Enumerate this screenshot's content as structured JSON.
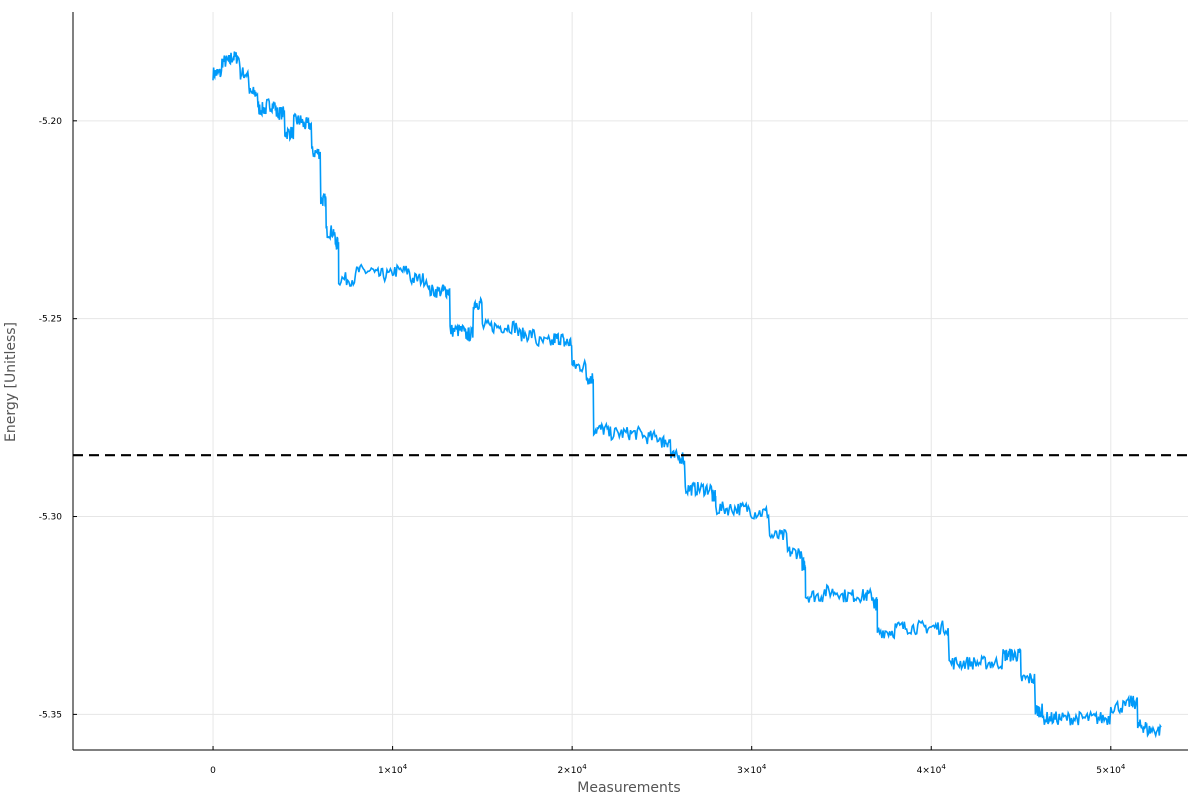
{
  "chart_data": {
    "type": "line",
    "xlabel": "Measurements",
    "ylabel": "Energy [Unitless]",
    "xlim": [
      -7800,
      54300
    ],
    "ylim": [
      -5.359,
      -5.1725
    ],
    "x_ticks": [
      {
        "value": 0,
        "label": "0"
      },
      {
        "value": 10000,
        "label": "1×10",
        "exp": "4"
      },
      {
        "value": 20000,
        "label": "2×10",
        "exp": "4"
      },
      {
        "value": 30000,
        "label": "3×10",
        "exp": "4"
      },
      {
        "value": 40000,
        "label": "4×10",
        "exp": "4"
      },
      {
        "value": 50000,
        "label": "5×10",
        "exp": "4"
      }
    ],
    "y_ticks": [
      {
        "value": -5.2,
        "label": "-5.20"
      },
      {
        "value": -5.25,
        "label": "-5.25"
      },
      {
        "value": -5.3,
        "label": "-5.30"
      },
      {
        "value": -5.35,
        "label": "-5.35"
      }
    ],
    "grid": true,
    "legend": "none",
    "series": [
      {
        "color": "#009af9",
        "x": [
          0,
          500,
          1000,
          1500,
          2000,
          2500,
          3000,
          3500,
          4000,
          4500,
          5000,
          5500,
          6000,
          6300,
          6800,
          7000,
          8000,
          9000,
          10000,
          11000,
          12000,
          12800,
          13200,
          14000,
          14500,
          15000,
          16000,
          17000,
          18000,
          19000,
          19500,
          20000,
          20800,
          21200,
          22000,
          23000,
          24000,
          25000,
          25500,
          26300,
          27000,
          27800,
          28000,
          29000,
          30000,
          31000,
          32000,
          32800,
          33000,
          34000,
          35000,
          36000,
          36800,
          37000,
          38000,
          39000,
          40000,
          41000,
          42000,
          43000,
          44000,
          44500,
          45000,
          45800,
          46200,
          47000,
          48000,
          49000,
          50000,
          51000,
          51500,
          52000,
          52800
        ],
        "y": [
          -5.188,
          -5.185,
          -5.184,
          -5.188,
          -5.193,
          -5.197,
          -5.196,
          -5.198,
          -5.203,
          -5.2,
          -5.201,
          -5.208,
          -5.22,
          -5.228,
          -5.231,
          -5.24,
          -5.238,
          -5.239,
          -5.238,
          -5.24,
          -5.243,
          -5.243,
          -5.253,
          -5.254,
          -5.246,
          -5.252,
          -5.252,
          -5.254,
          -5.256,
          -5.255,
          -5.256,
          -5.262,
          -5.265,
          -5.278,
          -5.279,
          -5.279,
          -5.28,
          -5.281,
          -5.285,
          -5.293,
          -5.293,
          -5.295,
          -5.298,
          -5.298,
          -5.299,
          -5.305,
          -5.309,
          -5.312,
          -5.32,
          -5.319,
          -5.32,
          -5.32,
          -5.322,
          -5.329,
          -5.328,
          -5.328,
          -5.328,
          -5.337,
          -5.337,
          -5.337,
          -5.335,
          -5.335,
          -5.341,
          -5.349,
          -5.351,
          -5.351,
          -5.351,
          -5.351,
          -5.348,
          -5.347,
          -5.353,
          -5.354,
          -5.352
        ]
      }
    ],
    "reference_line": {
      "y": -5.2845,
      "style": "dashed",
      "color": "#000000"
    }
  }
}
